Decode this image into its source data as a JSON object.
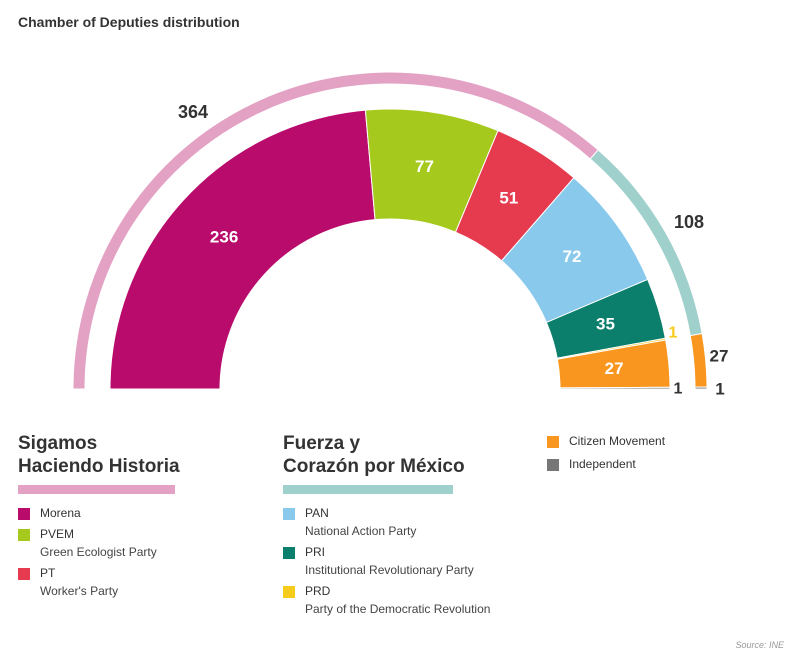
{
  "title": "Chamber of Deputies distribution",
  "source": "Source: INE",
  "colors": {
    "morena": "#b80b6b",
    "pvem": "#a5c91c",
    "pt": "#e63a4e",
    "pan": "#89c9ec",
    "pri": "#0b7e6c",
    "prd": "#f6cb1a",
    "mc": "#f8961f",
    "independent": "#777777",
    "sigamos_group": "#e3a1c4",
    "fuerza_group": "#9fd0cb",
    "mc_group": "#f8961f"
  },
  "chart_data": {
    "type": "pie",
    "shape": "half-donut",
    "title": "Chamber of Deputies distribution",
    "series": [
      {
        "key": "morena",
        "label": "Morena",
        "value": 236
      },
      {
        "key": "pvem",
        "label": "PVEM",
        "value": 77
      },
      {
        "key": "pt",
        "label": "PT",
        "value": 51
      },
      {
        "key": "pan",
        "label": "PAN",
        "value": 72
      },
      {
        "key": "pri",
        "label": "PRI",
        "value": 35
      },
      {
        "key": "prd",
        "label": "PRD",
        "value": 1
      },
      {
        "key": "mc",
        "label": "Citizen Movement",
        "value": 27
      },
      {
        "key": "independent",
        "label": "Independent",
        "value": 1
      }
    ],
    "groups": [
      {
        "key": "sigamos",
        "value": 364
      },
      {
        "key": "fuerza",
        "value": 108
      },
      {
        "key": "mc",
        "value": 27
      },
      {
        "key": "independent",
        "value": 1
      }
    ]
  },
  "legend": {
    "sigamos": {
      "title_line1": "Sigamos",
      "title_line2": "Haciendo Historia",
      "items": [
        {
          "key": "morena",
          "abbr": "Morena",
          "full": ""
        },
        {
          "key": "pvem",
          "abbr": "PVEM",
          "full": "Green Ecologist Party"
        },
        {
          "key": "pt",
          "abbr": "PT",
          "full": "Worker's Party"
        }
      ]
    },
    "fuerza": {
      "title_line1": "Fuerza y",
      "title_line2": "Corazón por México",
      "items": [
        {
          "key": "pan",
          "abbr": "PAN",
          "full": "National Action Party"
        },
        {
          "key": "pri",
          "abbr": "PRI",
          "full": "Institutional Revolutionary Party"
        },
        {
          "key": "prd",
          "abbr": "PRD",
          "full": "Party of the Democratic Revolution"
        }
      ]
    },
    "others": {
      "items": [
        {
          "key": "mc",
          "abbr": "Citizen Movement"
        },
        {
          "key": "independent",
          "abbr": "Independent"
        }
      ]
    }
  }
}
